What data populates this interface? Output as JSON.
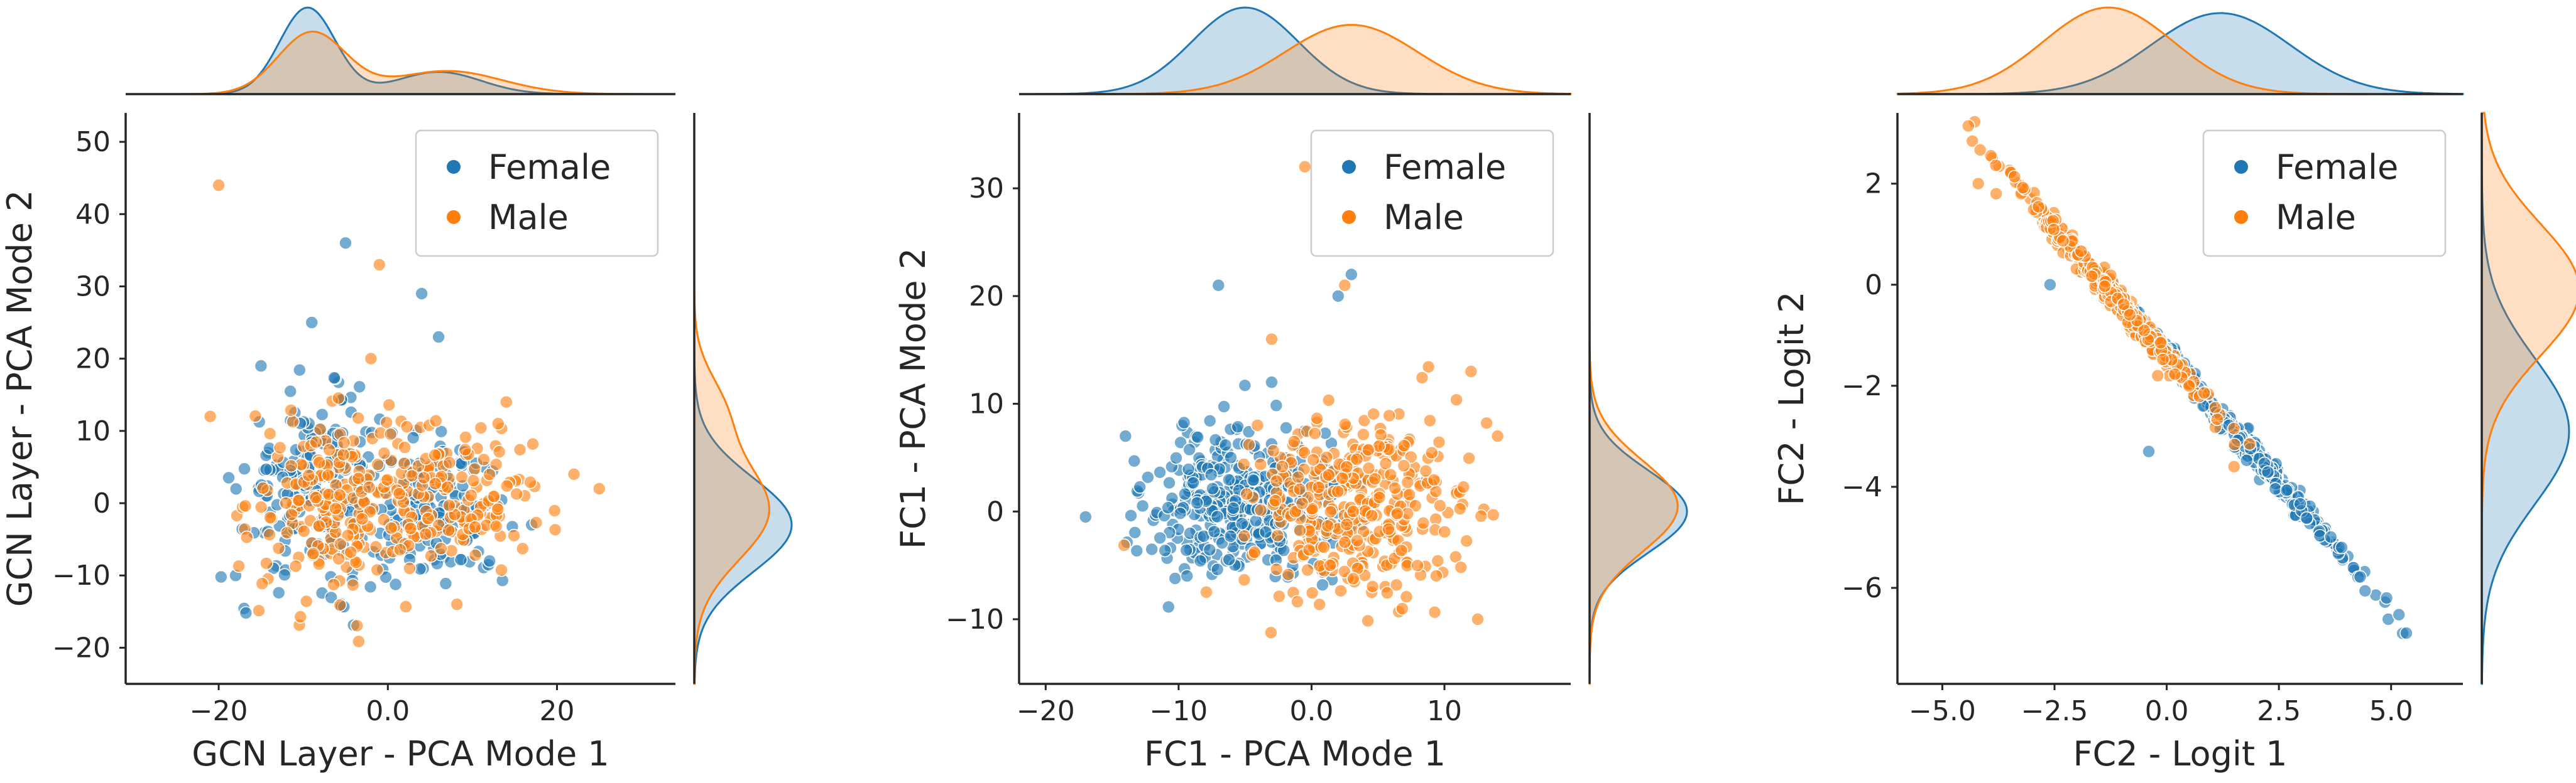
{
  "colors": {
    "female": "#1f77b4",
    "male": "#ff7f0e"
  },
  "chart_data": [
    {
      "type": "scatter",
      "xlabel": "GCN Layer - PCA Mode 1",
      "ylabel": "GCN Layer - PCA Mode 2",
      "xlim": [
        -31,
        34
      ],
      "ylim": [
        -25,
        54
      ],
      "xticks": [
        -20,
        0,
        20
      ],
      "yticks": [
        -20,
        -10,
        0,
        10,
        20,
        30,
        40,
        50
      ],
      "legend": {
        "position": "top-right",
        "entries": [
          "Female",
          "Male"
        ]
      },
      "series": [
        {
          "name": "Female",
          "clusters": [
            {
              "cx": -8,
              "cy": 2,
              "sx": 4.5,
              "sy": 6.0,
              "n": 220,
              "corr": 0
            },
            {
              "cx": 6,
              "cy": -1,
              "sx": 4.0,
              "sy": 5.0,
              "n": 130,
              "corr": 0
            }
          ],
          "points": [
            [
              -9,
              25
            ],
            [
              -5,
              36
            ],
            [
              4,
              29
            ],
            [
              6,
              23
            ],
            [
              -15,
              19
            ],
            [
              17,
              -3
            ],
            [
              -18,
              -10
            ]
          ]
        },
        {
          "name": "Male",
          "clusters": [
            {
              "cx": -6,
              "cy": 0,
              "sx": 5.0,
              "sy": 6.5,
              "n": 200,
              "corr": 0
            },
            {
              "cx": 8,
              "cy": 1,
              "sx": 5.5,
              "sy": 5.0,
              "n": 140,
              "corr": 0
            }
          ],
          "points": [
            [
              -20,
              44
            ],
            [
              -1,
              33
            ],
            [
              -2,
              20
            ],
            [
              22,
              4
            ],
            [
              25,
              2
            ],
            [
              -21,
              12
            ],
            [
              14,
              14
            ]
          ]
        }
      ],
      "marginal_x": {
        "Female": [
          {
            "mu": -9.5,
            "sd": 3.3,
            "w": 0.72
          },
          {
            "mu": 6,
            "sd": 5,
            "w": 0.28
          }
        ],
        "Male": [
          {
            "mu": -9,
            "sd": 4,
            "w": 0.62
          },
          {
            "mu": 7,
            "sd": 6.5,
            "w": 0.38
          }
        ]
      },
      "marginal_y": {
        "Female": [
          {
            "mu": -3,
            "sd": 6.5,
            "w": 1
          }
        ],
        "Male": [
          {
            "mu": -1,
            "sd": 6.8,
            "w": 0.8
          },
          {
            "mu": 13,
            "sd": 5,
            "w": 0.2
          }
        ]
      }
    },
    {
      "type": "scatter",
      "xlabel": "FC1 - PCA Mode 1",
      "ylabel": "FC1 - PCA Mode 2",
      "xlim": [
        -22,
        19.5
      ],
      "ylim": [
        -16,
        37
      ],
      "xticks": [
        -20,
        -10,
        0,
        10
      ],
      "yticks": [
        -10,
        0,
        10,
        20,
        30
      ],
      "legend": {
        "position": "top-right",
        "entries": [
          "Female",
          "Male"
        ]
      },
      "series": [
        {
          "name": "Female",
          "clusters": [
            {
              "cx": -5,
              "cy": 0.5,
              "sx": 3.6,
              "sy": 3.5,
              "n": 380,
              "corr": 0
            }
          ],
          "points": [
            [
              -7,
              21
            ],
            [
              3,
              22
            ],
            [
              -17,
              -0.5
            ],
            [
              -14,
              7
            ],
            [
              2,
              20
            ],
            [
              -3,
              12
            ]
          ]
        },
        {
          "name": "Male",
          "clusters": [
            {
              "cx": 3.5,
              "cy": 0.5,
              "sx": 4.0,
              "sy": 4.0,
              "n": 360,
              "corr": 0
            }
          ],
          "points": [
            [
              -0.5,
              32
            ],
            [
              12.5,
              -10
            ],
            [
              2.5,
              21
            ],
            [
              14,
              7
            ],
            [
              12,
              13
            ],
            [
              -3,
              16
            ]
          ]
        }
      ],
      "marginal_x": {
        "Female": [
          {
            "mu": -5,
            "sd": 4.0,
            "w": 1
          }
        ],
        "Male": [
          {
            "mu": 3,
            "sd": 5.0,
            "w": 1
          }
        ]
      },
      "marginal_y": {
        "Female": [
          {
            "mu": 0,
            "sd": 3.8,
            "w": 1
          }
        ],
        "Male": [
          {
            "mu": 0.5,
            "sd": 4.2,
            "w": 1
          }
        ]
      }
    },
    {
      "type": "scatter",
      "xlabel": "FC2 - Logit 1",
      "ylabel": "FC2 - Logit 2",
      "xlim": [
        -6.0,
        6.6
      ],
      "ylim": [
        -7.9,
        3.4
      ],
      "xticks": [
        -5.0,
        -2.5,
        0.0,
        2.5,
        5.0
      ],
      "yticks": [
        -6,
        -4,
        -2,
        0,
        2
      ],
      "legend": {
        "position": "top-right",
        "entries": [
          "Female",
          "Male"
        ]
      },
      "series": [
        {
          "name": "Female",
          "clusters": [
            {
              "cx": 1.5,
              "cy": -2.9,
              "sx": 1.3,
              "sy": 0.0,
              "n": 380,
              "corr": -1.03
            }
          ],
          "points": [
            [
              4.9,
              -6.2
            ],
            [
              3.9,
              -5.2
            ],
            [
              -0.4,
              -3.3
            ],
            [
              -2.6,
              0.0
            ]
          ]
        },
        {
          "name": "Male",
          "clusters": [
            {
              "cx": -1.3,
              "cy": -0.1,
              "sx": 1.2,
              "sy": 0.0,
              "n": 380,
              "corr": -1.03
            }
          ],
          "points": [
            [
              -4.2,
              2.0
            ],
            [
              -3.8,
              1.8
            ],
            [
              1.5,
              -3.6
            ],
            [
              -0.2,
              -1.8
            ]
          ]
        }
      ],
      "marginal_x": {
        "Female": [
          {
            "mu": 1.2,
            "sd": 1.55,
            "w": 1
          }
        ],
        "Male": [
          {
            "mu": -1.3,
            "sd": 1.45,
            "w": 1
          }
        ]
      },
      "marginal_y": {
        "Female": [
          {
            "mu": -2.9,
            "sd": 1.45,
            "w": 1
          }
        ],
        "Male": [
          {
            "mu": -0.1,
            "sd": 1.3,
            "w": 1
          }
        ]
      }
    }
  ]
}
